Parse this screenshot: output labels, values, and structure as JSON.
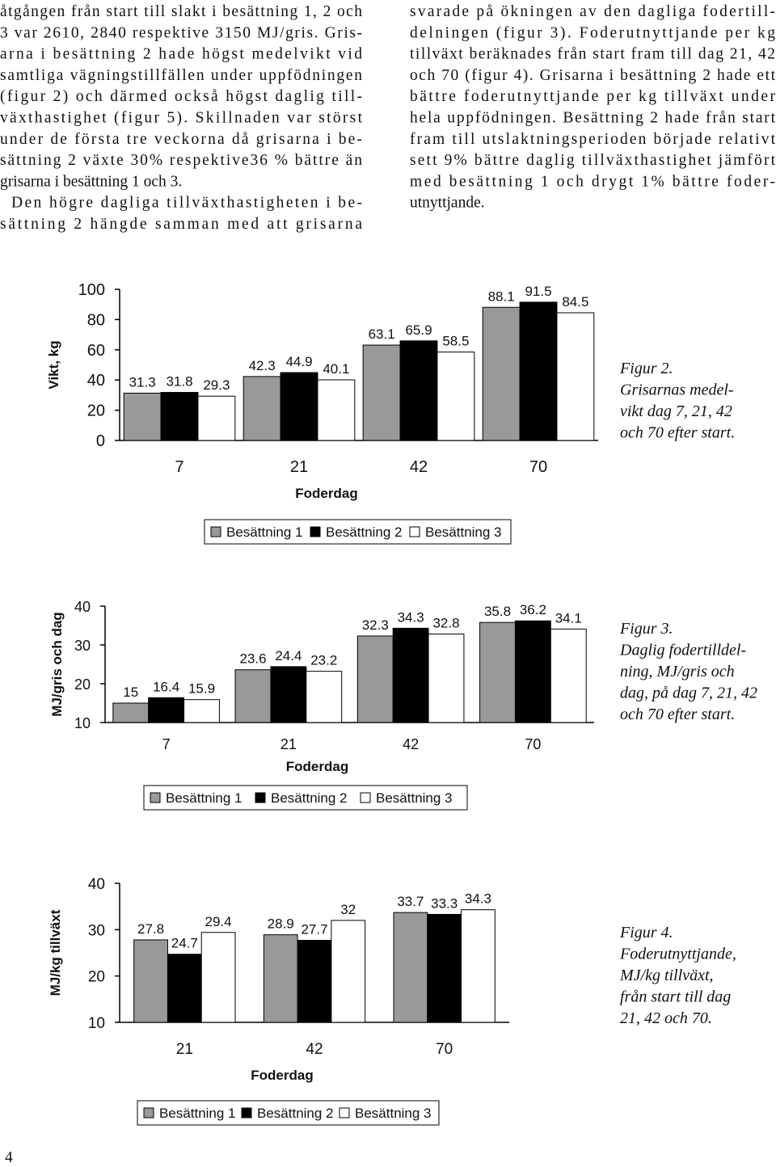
{
  "text": {
    "left": [
      "åtgången från start till slakt i besättning 1, 2 och",
      "3 var 2610, 2840 respektive 3150 MJ/gris. Gris-",
      "arna i besättning 2 hade högst medelvikt vid",
      "samtliga vägningstillfällen under uppfödningen",
      "(figur 2) och därmed också högst daglig till-",
      "växthastighet (figur 5). Skillnaden var störst",
      "under de första tre veckorna då grisarna i be-",
      "sättning 2 växte 30% respektive36 % bättre än",
      "grisarna i besättning 1 och 3.",
      "Den högre dagliga tillväxthastigheten i be-",
      "sättning 2 hängde samman med att grisarna"
    ],
    "right": [
      "svarade på ökningen av den dagliga fodertill-",
      "delningen (figur 3). Foderutnyttjande per kg",
      "tillväxt beräknades från start fram till dag 21, 42",
      "och 70 (figur 4). Grisarna i besättning 2 hade ett",
      "bättre foderutnyttjande per kg tillväxt under",
      "hela uppfödningen. Besättning 2 hade från start",
      "fram till utslaktningsperioden började relativt",
      "sett 9% bättre daglig tillväxthastighet jämfört",
      "med besättning 1 och drygt 1% bättre foder-",
      "utnyttjande."
    ]
  },
  "chart_data": [
    {
      "type": "bar",
      "y_label": "Vikt, kg",
      "x_label": "Foderdag",
      "categories": [
        "7",
        "21",
        "42",
        "70"
      ],
      "series": [
        {
          "name": "Besättning 1",
          "color": "#999999",
          "values": [
            31.3,
            42.3,
            63.1,
            88.1
          ]
        },
        {
          "name": "Besättning 2",
          "color": "#000000",
          "values": [
            31.8,
            44.9,
            65.9,
            91.5
          ]
        },
        {
          "name": "Besättning 3",
          "color": "#ffffff",
          "values": [
            29.3,
            40.1,
            58.5,
            84.5
          ]
        }
      ],
      "ylim": [
        0,
        100
      ],
      "yticks": [
        0,
        20,
        40,
        60,
        80,
        100
      ],
      "caption": [
        "Figur 2.",
        "Grisarnas medel-",
        "vikt dag 7, 21, 42",
        "och 70 efter start."
      ]
    },
    {
      "type": "bar",
      "y_label": "MJ/gris och dag",
      "x_label": "Foderdag",
      "categories": [
        "7",
        "21",
        "42",
        "70"
      ],
      "series": [
        {
          "name": "Besättning 1",
          "color": "#999999",
          "values": [
            15,
            23.6,
            32.3,
            35.8
          ]
        },
        {
          "name": "Besättning 2",
          "color": "#000000",
          "values": [
            16.4,
            24.4,
            34.3,
            36.2
          ]
        },
        {
          "name": "Besättning 3",
          "color": "#ffffff",
          "values": [
            15.9,
            23.2,
            32.8,
            34.1
          ]
        }
      ],
      "ylim": [
        10,
        40
      ],
      "yticks": [
        10,
        20,
        30,
        40
      ],
      "caption": [
        "Figur 3.",
        "Daglig fodertilldel-",
        "ning, MJ/gris och",
        "dag, på dag 7, 21, 42",
        "och 70 efter start."
      ]
    },
    {
      "type": "bar",
      "y_label": "MJ/kg tillväxt",
      "x_label": "Foderdag",
      "categories": [
        "21",
        "42",
        "70"
      ],
      "series": [
        {
          "name": "Besättning 1",
          "color": "#999999",
          "values": [
            27.8,
            28.9,
            33.7
          ]
        },
        {
          "name": "Besättning 2",
          "color": "#000000",
          "values": [
            24.7,
            27.7,
            33.3
          ]
        },
        {
          "name": "Besättning 3",
          "color": "#ffffff",
          "values": [
            29.4,
            32,
            34.3
          ]
        }
      ],
      "ylim": [
        10,
        40
      ],
      "yticks": [
        10,
        20,
        30,
        40
      ],
      "caption": [
        "Figur 4.",
        "Foderutnyttjande,",
        "MJ/kg tillväxt,",
        "från start till dag",
        "21, 42 och 70."
      ]
    }
  ],
  "page_number": "4"
}
